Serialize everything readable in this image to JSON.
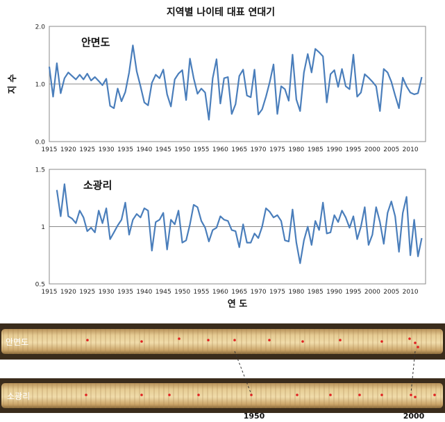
{
  "chart_data": {
    "title": "지역별 나이테 대표 연대기",
    "ylabel": "지 수",
    "xlabel": "연 도",
    "panels": [
      {
        "type": "line",
        "name": "안면도",
        "ylim": [
          0.0,
          2.0
        ],
        "yticks": [
          "0.0",
          "1.0",
          "2.0"
        ],
        "grid": false,
        "color": "#4a7ebb",
        "xticks": [
          1915,
          1920,
          1925,
          1930,
          1935,
          1940,
          1945,
          1950,
          1955,
          1960,
          1965,
          1970,
          1975,
          1980,
          1985,
          1990,
          1995,
          2000,
          2005,
          2010
        ],
        "x": [
          1915,
          1916,
          1917,
          1918,
          1919,
          1920,
          1921,
          1922,
          1923,
          1924,
          1925,
          1926,
          1927,
          1928,
          1929,
          1930,
          1931,
          1932,
          1933,
          1934,
          1935,
          1936,
          1937,
          1938,
          1939,
          1940,
          1941,
          1942,
          1943,
          1944,
          1945,
          1946,
          1947,
          1948,
          1949,
          1950,
          1951,
          1952,
          1953,
          1954,
          1955,
          1956,
          1957,
          1958,
          1959,
          1960,
          1961,
          1962,
          1963,
          1964,
          1965,
          1966,
          1967,
          1968,
          1969,
          1970,
          1971,
          1972,
          1973,
          1974,
          1975,
          1976,
          1977,
          1978,
          1979,
          1980,
          1981,
          1982,
          1983,
          1984,
          1985,
          1986,
          1987,
          1988,
          1989,
          1990,
          1991,
          1992,
          1993,
          1994,
          1995,
          1996,
          1997,
          1998,
          1999,
          2000,
          2001,
          2002,
          2003,
          2004,
          2005,
          2006,
          2007,
          2008,
          2009,
          2010,
          2011,
          2012,
          2013
        ],
        "y": [
          1.3,
          0.78,
          1.36,
          0.84,
          1.1,
          1.2,
          1.14,
          1.08,
          1.16,
          1.08,
          1.18,
          1.06,
          1.12,
          1.05,
          0.98,
          1.09,
          0.62,
          0.58,
          0.92,
          0.7,
          0.86,
          1.2,
          1.67,
          1.22,
          0.96,
          0.68,
          0.63,
          1.02,
          1.16,
          1.1,
          1.25,
          0.82,
          0.61,
          1.08,
          1.18,
          1.24,
          0.72,
          1.44,
          1.1,
          0.83,
          0.92,
          0.85,
          0.38,
          1.1,
          1.43,
          0.66,
          1.1,
          1.12,
          0.48,
          0.65,
          1.14,
          1.25,
          0.8,
          0.77,
          1.25,
          0.47,
          0.56,
          0.78,
          1.03,
          1.34,
          0.48,
          0.96,
          0.91,
          0.71,
          1.51,
          0.73,
          0.53,
          1.2,
          1.52,
          1.2,
          1.61,
          1.55,
          1.48,
          0.68,
          1.17,
          1.24,
          0.95,
          1.26,
          0.96,
          0.91,
          1.51,
          0.78,
          0.85,
          1.17,
          1.11,
          1.04,
          0.96,
          0.53,
          1.26,
          1.2,
          1.04,
          0.8,
          0.58,
          1.11,
          0.96,
          0.85,
          0.82,
          0.84,
          1.12
        ]
      },
      {
        "type": "line",
        "name": "소광리",
        "ylim": [
          0.5,
          1.5
        ],
        "yticks": [
          "0.5",
          "1",
          "1.5"
        ],
        "grid": false,
        "color": "#4a7ebb",
        "xticks": [
          1915,
          1920,
          1925,
          1930,
          1935,
          1940,
          1945,
          1950,
          1955,
          1960,
          1965,
          1970,
          1975,
          1980,
          1985,
          1990,
          1995,
          2000,
          2005,
          2010
        ],
        "x": [
          1917,
          1918,
          1919,
          1920,
          1921,
          1922,
          1923,
          1924,
          1925,
          1926,
          1927,
          1928,
          1929,
          1930,
          1931,
          1932,
          1933,
          1934,
          1935,
          1936,
          1937,
          1938,
          1939,
          1940,
          1941,
          1942,
          1943,
          1944,
          1945,
          1946,
          1947,
          1948,
          1949,
          1950,
          1951,
          1952,
          1953,
          1954,
          1955,
          1956,
          1957,
          1958,
          1959,
          1960,
          1961,
          1962,
          1963,
          1964,
          1965,
          1966,
          1967,
          1968,
          1969,
          1970,
          1971,
          1972,
          1973,
          1974,
          1975,
          1976,
          1977,
          1978,
          1979,
          1980,
          1981,
          1982,
          1983,
          1984,
          1985,
          1986,
          1987,
          1988,
          1989,
          1990,
          1991,
          1992,
          1993,
          1994,
          1995,
          1996,
          1997,
          1998,
          1999,
          2000,
          2001,
          2002,
          2003,
          2004,
          2005,
          2006,
          2007,
          2008,
          2009,
          2010,
          2011,
          2012,
          2013
        ],
        "y": [
          1.32,
          1.09,
          1.37,
          1.09,
          1.07,
          1.03,
          1.14,
          1.08,
          0.96,
          0.99,
          0.95,
          1.14,
          1.03,
          1.16,
          0.89,
          0.95,
          1.01,
          1.06,
          1.21,
          0.93,
          1.06,
          1.11,
          1.08,
          1.16,
          1.14,
          0.79,
          1.04,
          1.06,
          1.12,
          0.8,
          1.06,
          1.02,
          1.14,
          0.86,
          0.88,
          1.02,
          1.19,
          1.17,
          1.05,
          0.99,
          0.87,
          0.97,
          0.99,
          1.09,
          1.06,
          1.05,
          0.97,
          0.96,
          0.82,
          1.02,
          0.86,
          0.86,
          0.94,
          0.9,
          1.0,
          1.16,
          1.13,
          1.08,
          1.1,
          1.05,
          0.88,
          0.87,
          1.15,
          0.86,
          0.68,
          0.88,
          1.0,
          0.84,
          1.05,
          0.97,
          1.21,
          0.94,
          0.95,
          1.1,
          1.04,
          1.14,
          1.08,
          0.99,
          1.09,
          0.89,
          1.0,
          1.17,
          0.84,
          0.93,
          1.17,
          1.04,
          0.85,
          1.12,
          1.22,
          1.09,
          0.78,
          1.12,
          1.26,
          0.75,
          1.06,
          0.74,
          0.9
        ]
      }
    ]
  },
  "photo": {
    "cores": [
      {
        "label": "안면도"
      },
      {
        "label": "소광리"
      }
    ],
    "year_labels": [
      "1950",
      "2000"
    ],
    "core_color": "#d8b878",
    "marker_color": "#e02020"
  }
}
